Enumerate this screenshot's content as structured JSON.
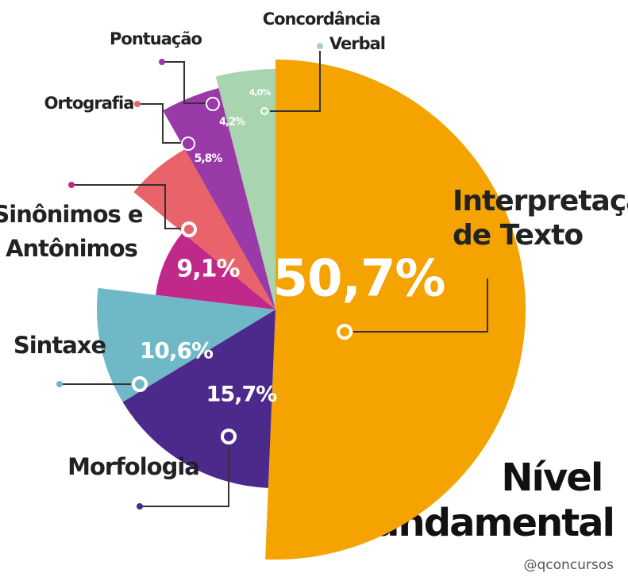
{
  "chart_data": {
    "type": "pie",
    "title": "Nível Fundamental",
    "subtitle": "@qconcursos",
    "categories": [
      "Interpretação de Texto",
      "Morfologia",
      "Sintaxe",
      "Sinônimos e Antônimos",
      "Ortografia",
      "Pontuação",
      "Concordância Verbal"
    ],
    "values": [
      50.7,
      15.7,
      10.6,
      9.1,
      5.8,
      4.2,
      4.0
    ],
    "value_labels": [
      "50,7%",
      "15,7%",
      "10,6%",
      "9,1%",
      "5,8%",
      "4,2%",
      "4,0%"
    ],
    "colors": [
      "#f5a300",
      "#4b2a8c",
      "#6fb8c8",
      "#c0288a",
      "#e8636a",
      "#9a3aa8",
      "#a8d4b0"
    ]
  }
}
